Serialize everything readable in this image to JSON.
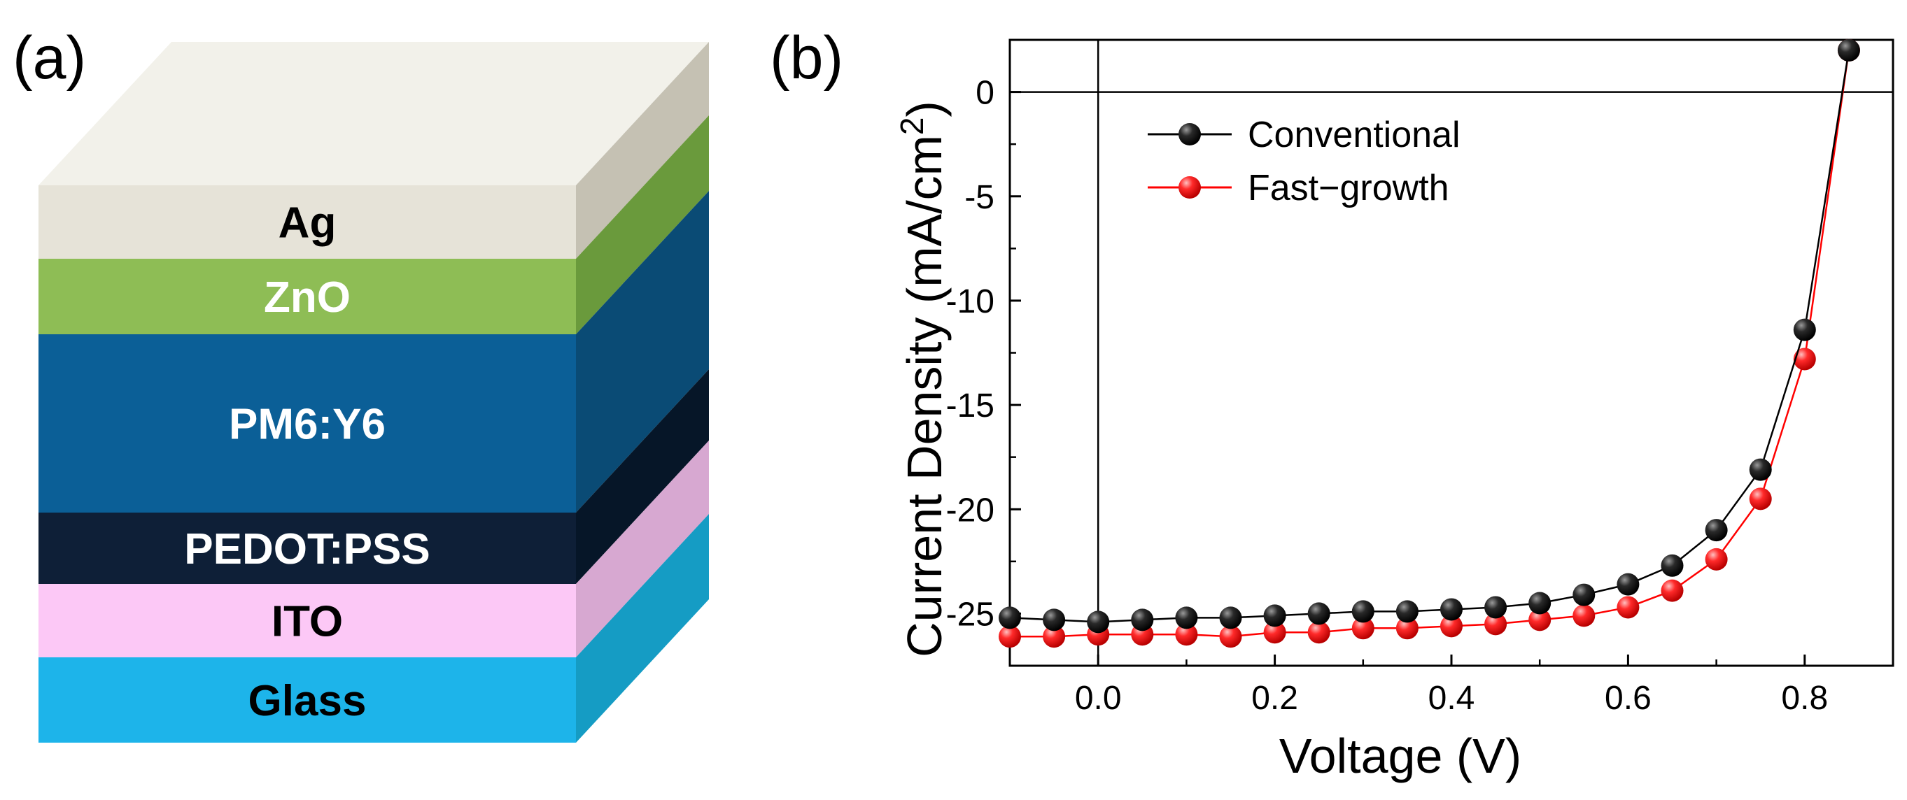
{
  "panel_a": {
    "label": "(a)",
    "layers": [
      {
        "label": "Ag",
        "front": "#e6e3d8",
        "side": "#c5c1b3",
        "text_color": "#000000"
      },
      {
        "label": "ZnO",
        "front": "#8ebd55",
        "side": "#6a9a3c",
        "text_color": "#ffffff"
      },
      {
        "label": "PM6:Y6",
        "front": "#0b5f97",
        "side": "#0a4b75",
        "text_color": "#ffffff"
      },
      {
        "label": "PEDOT:PSS",
        "front": "#0e1f37",
        "side": "#061628",
        "text_color": "#ffffff"
      },
      {
        "label": "ITO",
        "front": "#fcc8f6",
        "side": "#d7a8d1",
        "text_color": "#000000"
      },
      {
        "label": "Glass",
        "front": "#1db4ea",
        "side": "#159cc4",
        "text_color": "#000000"
      }
    ],
    "top_color": "#f2f1ea"
  },
  "panel_b": {
    "label": "(b)",
    "chart_data": {
      "type": "line",
      "xlabel": "Voltage (V)",
      "ylabel": "Current Density (mA/cm",
      "ylabel_superscript": "2",
      "ylabel_close": ")",
      "xlim": [
        -0.1,
        0.9
      ],
      "ylim": [
        -27.5,
        2.5
      ],
      "xticks": [
        0.0,
        0.2,
        0.4,
        0.6,
        0.8
      ],
      "xtick_labels": [
        "0.0",
        "0.2",
        "0.4",
        "0.6",
        "0.8"
      ],
      "yticks": [
        0,
        -5,
        -10,
        -15,
        -20,
        -25
      ],
      "ytick_labels": [
        "0",
        "-5",
        "-10",
        "-15",
        "-20",
        "-25"
      ],
      "legend_position": "top-left",
      "series": [
        {
          "name": "Conventional",
          "color": "#000000",
          "x": [
            -0.1,
            -0.05,
            0.0,
            0.05,
            0.1,
            0.15,
            0.2,
            0.25,
            0.3,
            0.35,
            0.4,
            0.45,
            0.5,
            0.55,
            0.6,
            0.65,
            0.7,
            0.75,
            0.8,
            0.85
          ],
          "y": [
            -25.2,
            -25.3,
            -25.4,
            -25.3,
            -25.2,
            -25.2,
            -25.1,
            -25.0,
            -24.9,
            -24.9,
            -24.8,
            -24.7,
            -24.5,
            -24.1,
            -23.6,
            -22.7,
            -21.0,
            -18.1,
            -11.4,
            2.0
          ]
        },
        {
          "name": "Fast−growth",
          "color": "#ff0000",
          "x": [
            -0.1,
            -0.05,
            0.0,
            0.05,
            0.1,
            0.15,
            0.2,
            0.25,
            0.3,
            0.35,
            0.4,
            0.45,
            0.5,
            0.55,
            0.6,
            0.65,
            0.7,
            0.75,
            0.8,
            0.85
          ],
          "y": [
            -26.1,
            -26.1,
            -26.0,
            -26.0,
            -26.0,
            -26.1,
            -25.9,
            -25.9,
            -25.7,
            -25.7,
            -25.6,
            -25.5,
            -25.3,
            -25.1,
            -24.7,
            -23.9,
            -22.4,
            -19.5,
            -12.8,
            2.0
          ]
        }
      ]
    }
  }
}
